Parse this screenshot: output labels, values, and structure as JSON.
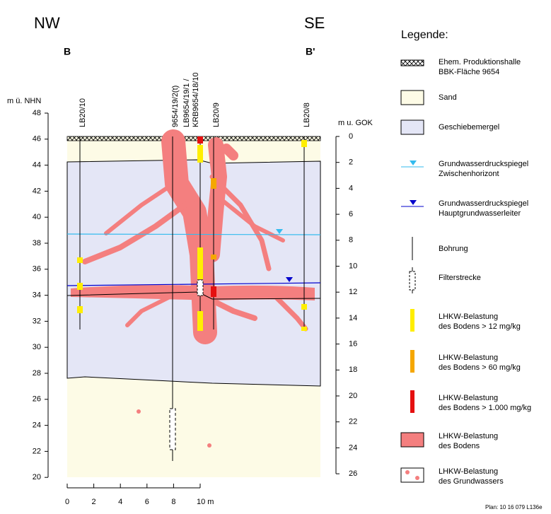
{
  "header": {
    "left": "NW",
    "right": "SE",
    "left_mark": "B",
    "right_mark": "B'"
  },
  "left_axis": {
    "title": "m ü. NHN",
    "ticks": [
      48,
      46,
      44,
      42,
      40,
      38,
      36,
      34,
      32,
      30,
      28,
      26,
      24,
      22,
      20
    ]
  },
  "right_axis": {
    "title": "m u. GOK",
    "ticks": [
      0,
      2,
      4,
      6,
      8,
      10,
      12,
      14,
      16,
      18,
      20,
      22,
      24,
      26
    ]
  },
  "bottom_axis": {
    "ticks": [
      0,
      2,
      4,
      6,
      8,
      "10 m"
    ]
  },
  "boreholes": [
    {
      "lines": [
        "LB20/10"
      ]
    },
    {
      "lines": [
        "9654/19/2(t)"
      ]
    },
    {
      "lines": [
        "LB9654/19/1 /",
        "KRB9654/18/10"
      ]
    },
    {
      "lines": [
        "LB20/9"
      ]
    },
    {
      "lines": [
        "LB20/8"
      ]
    }
  ],
  "legend": {
    "title": "Legende:",
    "items": [
      {
        "lines": [
          "Ehem. Produktionshalle",
          "BBK-Fläche 9654"
        ]
      },
      {
        "lines": [
          "Sand"
        ]
      },
      {
        "lines": [
          "Geschiebemergel"
        ]
      },
      {
        "lines": [
          "Grundwasserdruckspiegel",
          "Zwischenhorizont"
        ]
      },
      {
        "lines": [
          "Grundwasserdruckspiegel",
          "Hauptgrundwasserleiter"
        ]
      },
      {
        "lines": [
          "Bohrung"
        ]
      },
      {
        "lines": [
          "Filterstrecke"
        ]
      },
      {
        "lines": [
          "LHKW-Belastung",
          "des Bodens > 12 mg/kg"
        ]
      },
      {
        "lines": [
          "LHKW-Belastung",
          "des Bodens > 60 mg/kg"
        ]
      },
      {
        "lines": [
          "LHKW-Belastung",
          "des Bodens > 1.000 mg/kg"
        ]
      },
      {
        "lines": [
          "LHKW-Belastung",
          "des Bodens"
        ]
      },
      {
        "lines": [
          "LHKW-Belastung",
          "des Grundwassers"
        ]
      }
    ]
  },
  "footer": {
    "plan": "Plan: 10 16 079 L136e"
  }
}
